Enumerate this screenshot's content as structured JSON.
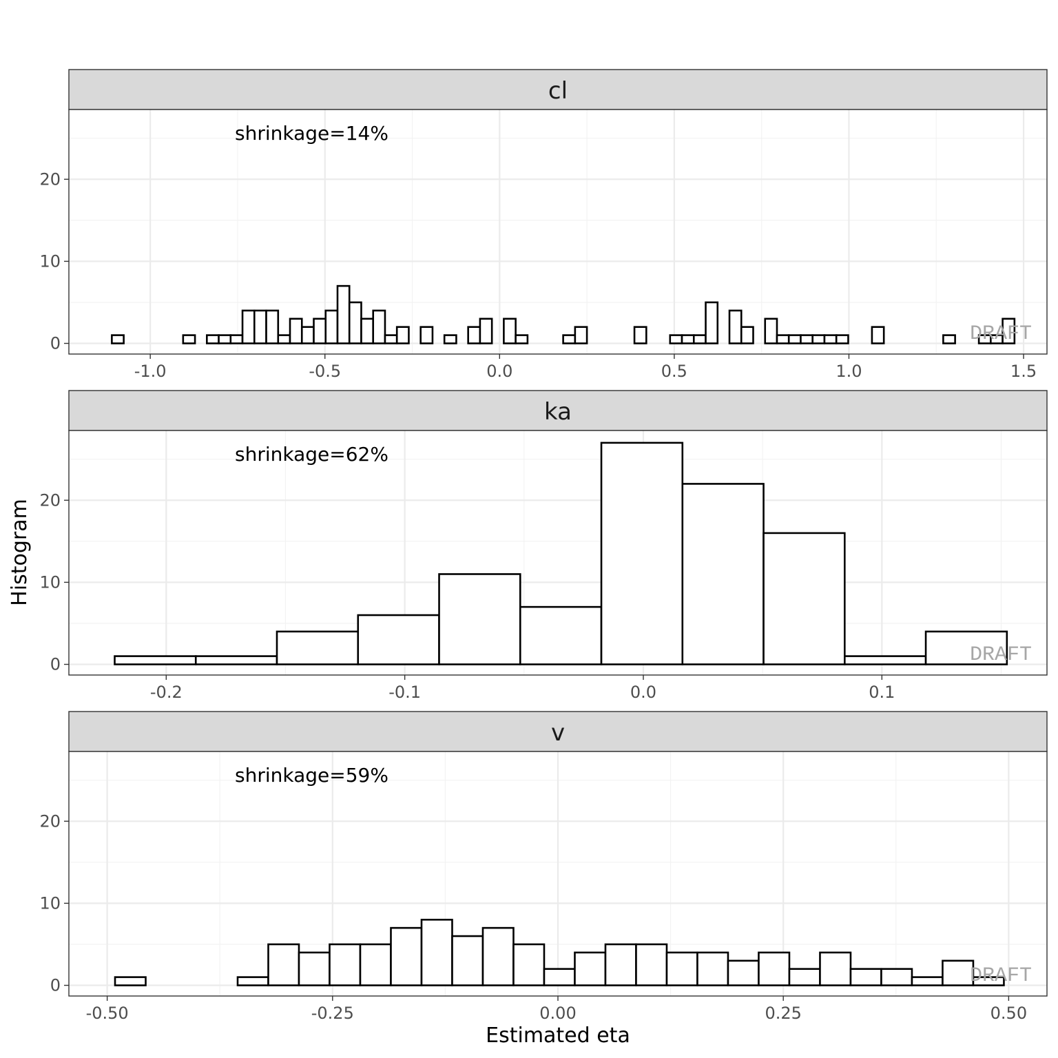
{
  "chart_data": {
    "type": "histogram-facets",
    "ylabel": "Histogram",
    "xlabel": "Estimated eta",
    "ylim": [
      -1.3,
      28.5
    ],
    "y_ticks": [
      0,
      10,
      20
    ],
    "y_tick_labels": [
      "0",
      "10",
      "20"
    ],
    "watermark": "DRAFT",
    "facets": [
      {
        "name": "cl",
        "annotation": "shrinkage=14%",
        "xlim": [
          -1.233,
          1.567
        ],
        "x_ticks": [
          -1.0,
          -0.5,
          0.0,
          0.5,
          1.0,
          1.5
        ],
        "x_tick_labels": [
          "-1.0",
          "-0.5",
          "0.0",
          "0.5",
          "1.0",
          "1.5"
        ],
        "bin_start": -1.11,
        "bin_width": 0.034,
        "counts": [
          1,
          0,
          0,
          0,
          0,
          0,
          1,
          0,
          1,
          1,
          1,
          4,
          4,
          4,
          1,
          3,
          2,
          3,
          4,
          7,
          5,
          3,
          4,
          1,
          2,
          0,
          2,
          0,
          1,
          0,
          2,
          3,
          0,
          3,
          1,
          0,
          0,
          0,
          1,
          2,
          0,
          0,
          0,
          0,
          2,
          0,
          0,
          1,
          1,
          1,
          5,
          0,
          4,
          2,
          0,
          3,
          1,
          1,
          1,
          1,
          1,
          1,
          0,
          0,
          2,
          0,
          0,
          0,
          0,
          0,
          1,
          0,
          0,
          1,
          1,
          3
        ]
      },
      {
        "name": "ka",
        "annotation": "shrinkage=62%",
        "xlim": [
          -0.2408,
          0.1692
        ],
        "x_ticks": [
          -0.2,
          -0.1,
          0.0,
          0.1
        ],
        "x_tick_labels": [
          "-0.2",
          "-0.1",
          "0.0",
          "0.1"
        ],
        "bin_start": -0.2216,
        "bin_width": 0.034,
        "counts": [
          1,
          1,
          4,
          6,
          11,
          7,
          27,
          22,
          16,
          1,
          4
        ]
      },
      {
        "name": "v",
        "annotation": "shrinkage=59%",
        "xlim": [
          -0.5425,
          0.5425
        ],
        "x_ticks": [
          -0.5,
          -0.25,
          0.0,
          0.25,
          0.5
        ],
        "x_tick_labels": [
          "-0.50",
          "-0.25",
          "0.00",
          "0.25",
          "0.50"
        ],
        "bin_start": -0.4913,
        "bin_width": 0.034,
        "counts": [
          1,
          0,
          0,
          0,
          1,
          5,
          4,
          5,
          5,
          7,
          8,
          6,
          7,
          5,
          2,
          4,
          5,
          5,
          4,
          4,
          3,
          4,
          2,
          4,
          2,
          2,
          1,
          3,
          1
        ]
      }
    ]
  }
}
